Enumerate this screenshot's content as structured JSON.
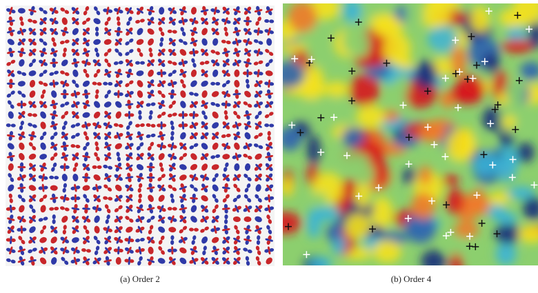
{
  "figure": {
    "panels": [
      {
        "caption": "(a) Order 2"
      },
      {
        "caption": "(b) Order 4"
      }
    ]
  }
}
